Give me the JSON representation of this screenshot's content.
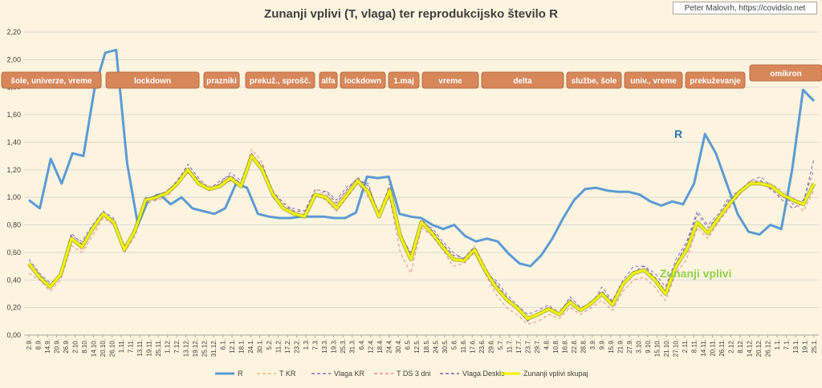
{
  "chart_data": {
    "type": "line",
    "title": "Zunanji vplivi (T, vlaga) ter reprodukcijsko število R",
    "credit": "Peter Malovrh, https://covidslo.net",
    "ylim": [
      0,
      2.2
    ],
    "y_ticks": [
      "0,00",
      "0,20",
      "0,40",
      "0,60",
      "0,80",
      "1,00",
      "1,20",
      "1,40",
      "1,60",
      "1,80",
      "2,00",
      "2,20"
    ],
    "x_tick_labels": [
      "2.9.",
      "8.9.",
      "14.9.",
      "20.9.",
      "26.9.",
      "2.10.",
      "8.10.",
      "14.10.",
      "20.10.",
      "26.10.",
      "1.11.",
      "7.11.",
      "13.11.",
      "19.11.",
      "25.11.",
      "1.12.",
      "7.12.",
      "13.12.",
      "19.12.",
      "25.12.",
      "31.12.",
      "6.1.",
      "12.1.",
      "18.1.",
      "24.1.",
      "30.1.",
      "5.2.",
      "11.2.",
      "17.2.",
      "23.2.",
      "1.3.",
      "7.3.",
      "13.3.",
      "19.3.",
      "25.3.",
      "31.3.",
      "6.4.",
      "12.4.",
      "18.4.",
      "24.4.",
      "30.4.",
      "6.5.",
      "12.5.",
      "18.5.",
      "24.5.",
      "30.5.",
      "5.6.",
      "11.6.",
      "17.6.",
      "23.6.",
      "29.6.",
      "5.7.",
      "11.7.",
      "17.7.",
      "23.7.",
      "29.7.",
      "4.8.",
      "10.8.",
      "16.8.",
      "22.8.",
      "28.8.",
      "3.9.",
      "9.9.",
      "15.9.",
      "21.9.",
      "27.9.",
      "3.10.",
      "9.10.",
      "15.10.",
      "21.10.",
      "27.10.",
      "2.11.",
      "8.11.",
      "14.11.",
      "20.11.",
      "26.11.",
      "2.12.",
      "8.12.",
      "14.12.",
      "20.12.",
      "26.12.",
      "1.1.",
      "7.1.",
      "13.1.",
      "19.1.",
      "25.1."
    ],
    "phases": [
      {
        "label": "šole, univerze, vreme"
      },
      {
        "label": "lockdown"
      },
      {
        "label": "prazniki"
      },
      {
        "label": "prekuž., sprošč."
      },
      {
        "label": "alfa"
      },
      {
        "label": "lockdown"
      },
      {
        "label": "1.maj"
      },
      {
        "label": "vreme"
      },
      {
        "label": "delta"
      },
      {
        "label": "službe, šole"
      },
      {
        "label": "univ., vreme"
      },
      {
        "label": "prekuževanje"
      },
      {
        "label": "omikron"
      }
    ],
    "annotations": [
      {
        "text": "R",
        "color": "#2e75b6"
      },
      {
        "text": "Zunanji vplivi",
        "color": "#92d050"
      }
    ],
    "legend_position": "bottom",
    "series": [
      {
        "name": "R",
        "color": "#5b9bd5",
        "style": "solid",
        "values": [
          0.98,
          0.92,
          1.28,
          1.1,
          1.32,
          1.3,
          1.78,
          2.05,
          2.07,
          1.25,
          0.8,
          0.99,
          1.02,
          0.95,
          1.0,
          0.92,
          0.9,
          0.88,
          0.92,
          1.1,
          1.07,
          0.88,
          0.86,
          0.85,
          0.85,
          0.86,
          0.86,
          0.86,
          0.85,
          0.85,
          0.89,
          1.15,
          1.14,
          1.15,
          0.88,
          0.86,
          0.85,
          0.8,
          0.77,
          0.8,
          0.72,
          0.68,
          0.7,
          0.68,
          0.59,
          0.52,
          0.5,
          0.58,
          0.7,
          0.85,
          0.98,
          1.06,
          1.07,
          1.05,
          1.04,
          1.04,
          1.02,
          0.97,
          0.94,
          0.97,
          0.95,
          1.1,
          1.46,
          1.32,
          1.1,
          0.88,
          0.75,
          0.73,
          0.8,
          0.77,
          1.2,
          1.78,
          1.7
        ]
      },
      {
        "name": "T KR",
        "color": "#f4b183",
        "style": "dashed",
        "values": [
          0.5,
          0.42,
          0.35,
          0.45,
          0.7,
          0.62,
          0.76,
          0.88,
          0.82,
          0.65,
          0.75,
          0.98,
          1.0,
          1.03,
          1.13,
          1.22,
          1.12,
          1.08,
          1.1,
          1.15,
          1.1,
          1.3,
          1.22,
          1.05,
          0.95,
          0.9,
          0.88,
          1.05,
          1.02,
          0.95,
          1.05,
          1.15,
          1.05,
          0.9,
          1.08,
          0.75,
          0.55,
          0.85,
          0.75,
          0.65,
          0.55,
          0.55,
          0.65,
          0.5,
          0.35,
          0.25,
          0.2,
          0.12,
          0.15,
          0.2,
          0.18,
          0.25,
          0.18,
          0.25,
          0.3,
          0.22,
          0.38,
          0.45,
          0.48,
          0.4,
          0.3,
          0.5,
          0.62,
          0.8,
          0.75,
          0.85,
          0.95,
          1.05,
          1.1,
          1.1,
          1.1,
          1.05,
          1.0,
          0.95,
          1.1
        ]
      },
      {
        "name": "Vlaga KR",
        "color": "#8e6fc2",
        "style": "dashed",
        "values": [
          0.55,
          0.45,
          0.38,
          0.42,
          0.72,
          0.68,
          0.8,
          0.9,
          0.85,
          0.62,
          0.78,
          1.0,
          0.98,
          1.05,
          1.1,
          1.2,
          1.12,
          1.05,
          1.1,
          1.18,
          1.12,
          1.32,
          1.2,
          1.02,
          0.92,
          0.92,
          0.9,
          1.0,
          1.05,
          0.98,
          1.08,
          1.12,
          1.1,
          0.85,
          1.1,
          0.72,
          0.6,
          0.8,
          0.78,
          0.68,
          0.6,
          0.55,
          0.6,
          0.45,
          0.4,
          0.3,
          0.22,
          0.15,
          0.18,
          0.22,
          0.15,
          0.28,
          0.2,
          0.22,
          0.35,
          0.25,
          0.4,
          0.5,
          0.5,
          0.45,
          0.35,
          0.55,
          0.68,
          0.9,
          0.8,
          0.88,
          1.0,
          1.05,
          1.12,
          1.15,
          1.08,
          1.02,
          0.95,
          0.98,
          1.2
        ]
      },
      {
        "name": "T DS 3 dni",
        "color": "#f08a8a",
        "style": "dashed",
        "values": [
          0.45,
          0.4,
          0.32,
          0.4,
          0.65,
          0.6,
          0.72,
          0.85,
          0.8,
          0.6,
          0.72,
          0.95,
          0.98,
          1.0,
          1.1,
          1.18,
          1.1,
          1.05,
          1.08,
          1.12,
          1.08,
          1.35,
          1.25,
          1.0,
          0.92,
          0.88,
          0.85,
          1.02,
          0.98,
          0.9,
          1.0,
          1.1,
          1.0,
          0.88,
          1.0,
          0.6,
          0.45,
          0.78,
          0.72,
          0.62,
          0.5,
          0.52,
          0.6,
          0.45,
          0.3,
          0.2,
          0.15,
          0.08,
          0.1,
          0.15,
          0.12,
          0.2,
          0.15,
          0.2,
          0.25,
          0.18,
          0.32,
          0.4,
          0.42,
          0.35,
          0.25,
          0.45,
          0.55,
          0.78,
          0.7,
          0.82,
          0.92,
          1.02,
          1.12,
          1.12,
          1.05,
          1.0,
          0.98,
          0.9,
          1.05
        ]
      },
      {
        "name": "Vlaga Deskle",
        "color": "#7f60ad",
        "style": "dashed",
        "values": [
          0.52,
          0.44,
          0.36,
          0.44,
          0.74,
          0.66,
          0.78,
          0.86,
          0.84,
          0.64,
          0.76,
          0.97,
          1.02,
          1.04,
          1.12,
          1.24,
          1.14,
          1.06,
          1.12,
          1.16,
          1.1,
          1.28,
          1.24,
          1.04,
          0.96,
          0.9,
          0.9,
          1.06,
          1.04,
          0.96,
          1.06,
          1.14,
          1.08,
          0.88,
          1.06,
          0.74,
          0.58,
          0.84,
          0.76,
          0.66,
          0.58,
          0.56,
          0.64,
          0.48,
          0.38,
          0.28,
          0.2,
          0.1,
          0.16,
          0.2,
          0.16,
          0.26,
          0.18,
          0.24,
          0.32,
          0.24,
          0.38,
          0.46,
          0.5,
          0.42,
          0.32,
          0.52,
          0.66,
          0.88,
          0.78,
          0.86,
          0.98,
          1.04,
          1.1,
          1.12,
          1.06,
          0.98,
          0.92,
          0.96,
          1.28
        ]
      },
      {
        "name": "Zunanji vplivi skupaj",
        "color": "#f2f200",
        "style": "solid",
        "values": [
          0.52,
          0.42,
          0.35,
          0.44,
          0.7,
          0.64,
          0.77,
          0.88,
          0.82,
          0.62,
          0.76,
          0.98,
          1.0,
          1.03,
          1.1,
          1.2,
          1.1,
          1.06,
          1.08,
          1.14,
          1.08,
          1.3,
          1.2,
          1.02,
          0.92,
          0.88,
          0.86,
          1.02,
          1.0,
          0.92,
          1.02,
          1.12,
          1.04,
          0.86,
          1.05,
          0.72,
          0.55,
          0.82,
          0.74,
          0.64,
          0.55,
          0.54,
          0.62,
          0.47,
          0.35,
          0.26,
          0.2,
          0.12,
          0.15,
          0.19,
          0.15,
          0.24,
          0.18,
          0.23,
          0.3,
          0.22,
          0.37,
          0.45,
          0.47,
          0.4,
          0.3,
          0.5,
          0.62,
          0.82,
          0.74,
          0.85,
          0.95,
          1.04,
          1.1,
          1.1,
          1.08,
          1.02,
          0.98,
          0.95,
          1.1
        ]
      }
    ]
  }
}
